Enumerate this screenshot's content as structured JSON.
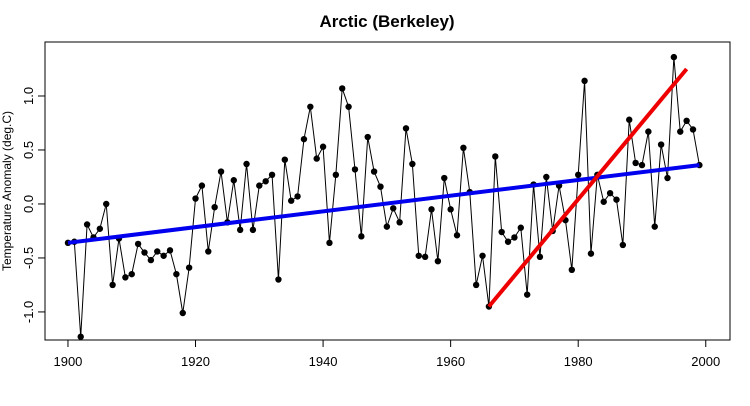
{
  "chart_data": {
    "type": "line",
    "title": "Arctic   (Berkeley)",
    "y_label": "Temperature Anomaly (deg.C)",
    "x": [
      1900,
      1901,
      1902,
      1903,
      1904,
      1905,
      1906,
      1907,
      1908,
      1909,
      1910,
      1911,
      1912,
      1913,
      1914,
      1915,
      1916,
      1917,
      1918,
      1919,
      1920,
      1921,
      1922,
      1923,
      1924,
      1925,
      1926,
      1927,
      1928,
      1929,
      1930,
      1931,
      1932,
      1933,
      1934,
      1935,
      1936,
      1937,
      1938,
      1939,
      1940,
      1941,
      1942,
      1943,
      1944,
      1945,
      1946,
      1947,
      1948,
      1949,
      1950,
      1951,
      1952,
      1953,
      1954,
      1955,
      1956,
      1957,
      1958,
      1959,
      1960,
      1961,
      1962,
      1963,
      1964,
      1965,
      1966,
      1967,
      1968,
      1969,
      1970,
      1971,
      1972,
      1973,
      1974,
      1975,
      1976,
      1977,
      1978,
      1979,
      1980,
      1981,
      1982,
      1983,
      1984,
      1985,
      1986,
      1987,
      1988,
      1989,
      1990,
      1991,
      1992,
      1993,
      1994,
      1995,
      1996,
      1997,
      1998,
      1999
    ],
    "series": [
      {
        "color": "#000000",
        "values": [
          -0.36,
          -0.35,
          -1.23,
          -0.19,
          -0.31,
          -0.23,
          0.0,
          -0.75,
          -0.32,
          -0.68,
          -0.65,
          -0.37,
          -0.45,
          -0.52,
          -0.44,
          -0.48,
          -0.43,
          -0.65,
          -1.01,
          -0.59,
          0.05,
          0.17,
          -0.44,
          -0.03,
          0.3,
          -0.17,
          0.22,
          -0.24,
          0.37,
          -0.24,
          0.17,
          0.21,
          0.27,
          -0.7,
          0.41,
          0.03,
          0.07,
          0.6,
          0.9,
          0.42,
          0.53,
          -0.36,
          0.27,
          1.07,
          0.9,
          0.32,
          -0.3,
          0.62,
          0.3,
          0.16,
          -0.21,
          -0.04,
          -0.17,
          0.7,
          0.37,
          -0.48,
          -0.49,
          -0.05,
          -0.53,
          0.24,
          -0.05,
          -0.29,
          0.52,
          0.11,
          -0.75,
          -0.48,
          -0.95,
          0.44,
          -0.26,
          -0.35,
          -0.31,
          -0.22,
          -0.84,
          0.18,
          -0.49,
          0.25,
          -0.25,
          0.17,
          -0.15,
          -0.61,
          0.27,
          1.14,
          -0.46,
          0.27,
          0.02,
          0.1,
          0.04,
          -0.38,
          0.78,
          0.38,
          0.36,
          0.67,
          -0.21,
          0.55,
          0.24,
          1.36,
          0.67,
          0.77,
          0.69,
          0.36
        ]
      }
    ],
    "trend_lines": [
      {
        "color": "#0000ee",
        "x": [
          1900,
          1999
        ],
        "values": [
          -0.36,
          0.36
        ]
      },
      {
        "color": "#ee0000",
        "x": [
          1966,
          1997
        ],
        "values": [
          -0.95,
          1.25
        ]
      }
    ],
    "xlim": [
      1896.4,
      2003.8
    ],
    "ylim": [
      -1.26,
      1.5
    ],
    "xticks": [
      1900,
      1920,
      1940,
      1960,
      1980,
      2000
    ],
    "yticks": [
      {
        "value": -1,
        "label": "-1.0"
      },
      -0.5,
      {
        "value": 0,
        "label": "0.0"
      },
      0.5,
      {
        "value": 1,
        "label": "1.0"
      }
    ]
  }
}
